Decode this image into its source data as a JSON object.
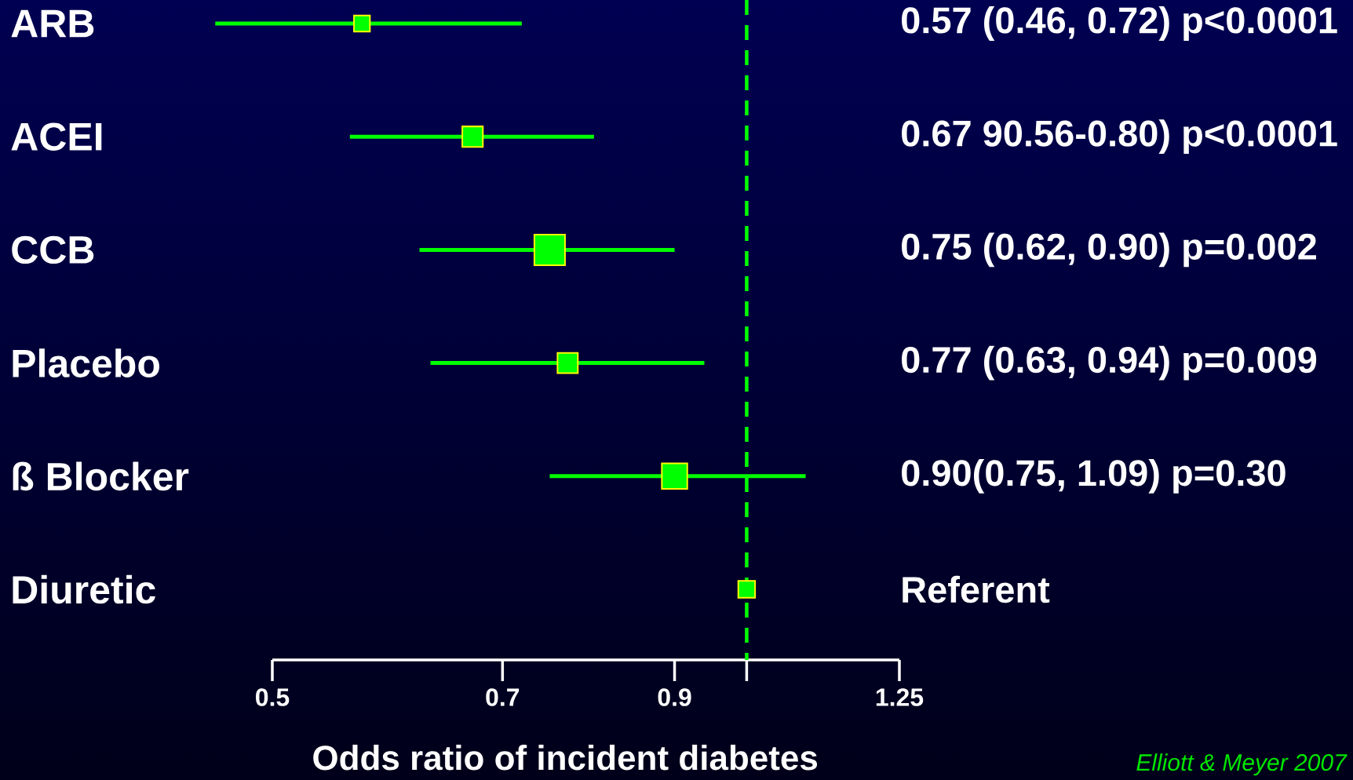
{
  "chart_data": {
    "type": "bubble",
    "orientation": "horizontal",
    "marker": "square",
    "categories": [
      "ARB",
      "ACEI",
      "CCB",
      "Placebo",
      "ß Blocker",
      "Diuretic"
    ],
    "values": [
      0.57,
      0.67,
      0.75,
      0.77,
      0.9,
      1
    ],
    "errors": [
      [
        0.46,
        0.72
      ],
      [
        0.56,
        0.8
      ],
      [
        0.62,
        0.9
      ],
      [
        0.63,
        0.94
      ],
      [
        0.75,
        1.09
      ],
      null
    ],
    "sizes": [
      0.27,
      0.45,
      1,
      0.44,
      0.69,
      0.3
    ],
    "color": "#00ff00",
    "xlabel": "Odds ratio of incident diabetes",
    "xlim": [
      0.5,
      1.25
    ],
    "xticks": [
      0.5,
      0.7,
      0.9,
      {
        "value": 1,
        "label": null
      },
      1.25
    ],
    "log": "x",
    "ref_lines": [
      {
        "axis": "x",
        "value": 1,
        "color": "#00ff00",
        "line_style": "dashed"
      }
    ],
    "annotations": [
      "0.57 (0.46, 0.72) p<0.0001",
      "0.67 90.56-0.80) p<0.0001",
      "0.75 (0.62, 0.90) p=0.002",
      "0.77 (0.63, 0.94) p=0.009",
      "0.90(0.75, 1.09) p=0.30",
      "Referent",
      "Elliott & Meyer 2007"
    ]
  }
}
